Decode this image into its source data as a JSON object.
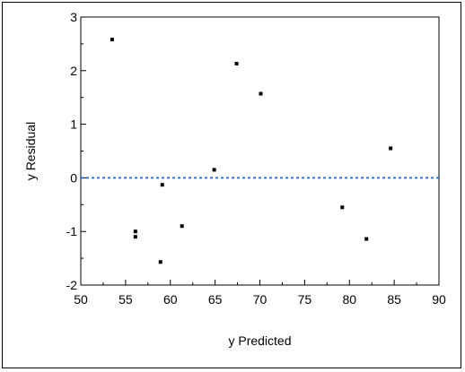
{
  "chart_data": {
    "type": "scatter",
    "title": "",
    "xlabel": "y Predicted",
    "ylabel": "y Residual",
    "xlim": [
      50,
      90
    ],
    "ylim": [
      -2,
      3
    ],
    "x_ticks": [
      50,
      55,
      60,
      65,
      70,
      75,
      80,
      85,
      90
    ],
    "y_ticks": [
      -2,
      -1,
      0,
      1,
      2,
      3
    ],
    "reference_line": {
      "y": 0,
      "style": "dotted",
      "color": "#3a6fd8"
    },
    "marker_color": "#000000",
    "grid": false,
    "points": [
      {
        "x": 53.5,
        "y": 2.58
      },
      {
        "x": 56.1,
        "y": -1.0
      },
      {
        "x": 56.1,
        "y": -1.1
      },
      {
        "x": 58.9,
        "y": -1.57
      },
      {
        "x": 59.1,
        "y": -0.13
      },
      {
        "x": 61.3,
        "y": -0.9
      },
      {
        "x": 64.9,
        "y": 0.15
      },
      {
        "x": 67.4,
        "y": 2.13
      },
      {
        "x": 70.1,
        "y": 1.57
      },
      {
        "x": 79.2,
        "y": -0.55
      },
      {
        "x": 81.9,
        "y": -1.14
      },
      {
        "x": 84.6,
        "y": 0.55
      }
    ]
  }
}
